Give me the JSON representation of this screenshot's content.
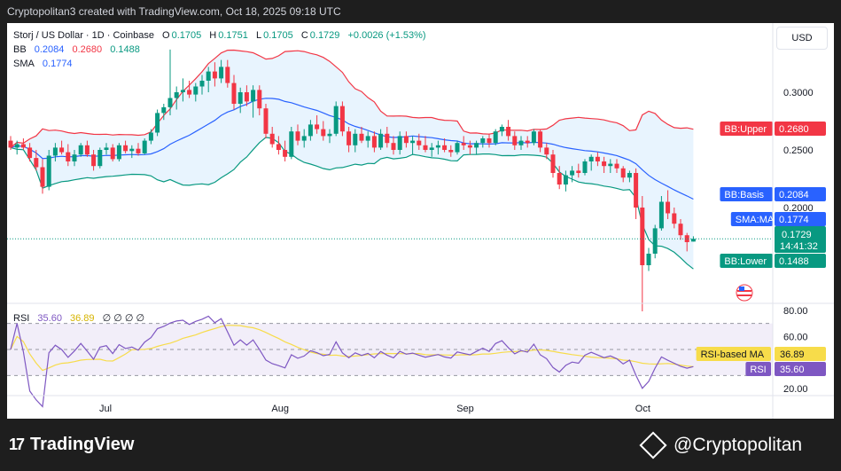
{
  "header": {
    "credit": "Cryptopolitan3 created with TradingView.com, Oct 18, 2025 09:18 UTC"
  },
  "legend": {
    "symbol": "Storj / US Dollar · 1D · Coinbase",
    "o_label": "O",
    "o_value": "0.1705",
    "h_label": "H",
    "h_value": "0.1751",
    "l_label": "L",
    "l_value": "0.1705",
    "c_label": "C",
    "c_value": "0.1729",
    "change": "+0.0026 (+1.53%)",
    "bb_label": "BB",
    "bb_basis": "0.2084",
    "bb_upper": "0.2680",
    "bb_lower": "0.1488",
    "sma_label": "SMA",
    "sma_value": "0.1774",
    "rsi_label": "RSI",
    "rsi_value": "35.60",
    "rsi_ma_value": "36.89",
    "rsi_extra": "∅ ∅ ∅ ∅"
  },
  "currency_button": "USD",
  "badges": {
    "bb_upper": {
      "label": "BB:Upper",
      "value": "0.2680"
    },
    "bb_basis": {
      "label": "BB:Basis",
      "value": "0.2084"
    },
    "sma": {
      "label": "SMA:MA",
      "value": "0.1774"
    },
    "price": {
      "value": "0.1729",
      "countdown": "14:41:32"
    },
    "bb_lower": {
      "label": "BB:Lower",
      "value": "0.1488"
    },
    "rsi_ma": {
      "label": "RSI-based MA",
      "value": "36.89"
    },
    "rsi": {
      "label": "RSI",
      "value": "35.60"
    }
  },
  "footer": {
    "brand": "TradingView",
    "watermark": "@Cryptopolitan"
  },
  "chart_data": {
    "type": "candlestick",
    "price_axis_ticks": [
      "0.3000",
      "0.2500",
      "0.2000"
    ],
    "rsi_axis_ticks": [
      "80.00",
      "60.00",
      "20.00"
    ],
    "time_ticks": [
      "Jul",
      "Aug",
      "Sep",
      "Oct"
    ],
    "ohlc": [
      [
        0.258,
        0.262,
        0.25,
        0.252
      ],
      [
        0.252,
        0.258,
        0.246,
        0.255
      ],
      [
        0.255,
        0.26,
        0.25,
        0.252
      ],
      [
        0.252,
        0.256,
        0.24,
        0.243
      ],
      [
        0.243,
        0.25,
        0.232,
        0.235
      ],
      [
        0.235,
        0.242,
        0.212,
        0.218
      ],
      [
        0.218,
        0.25,
        0.215,
        0.245
      ],
      [
        0.245,
        0.256,
        0.24,
        0.252
      ],
      [
        0.252,
        0.258,
        0.246,
        0.248
      ],
      [
        0.248,
        0.255,
        0.236,
        0.24
      ],
      [
        0.24,
        0.25,
        0.236,
        0.246
      ],
      [
        0.246,
        0.256,
        0.244,
        0.254
      ],
      [
        0.254,
        0.258,
        0.244,
        0.246
      ],
      [
        0.246,
        0.25,
        0.232,
        0.236
      ],
      [
        0.236,
        0.252,
        0.234,
        0.25
      ],
      [
        0.25,
        0.256,
        0.246,
        0.252
      ],
      [
        0.252,
        0.255,
        0.24,
        0.242
      ],
      [
        0.242,
        0.256,
        0.24,
        0.254
      ],
      [
        0.254,
        0.258,
        0.247,
        0.249
      ],
      [
        0.249,
        0.254,
        0.243,
        0.251
      ],
      [
        0.251,
        0.256,
        0.245,
        0.247
      ],
      [
        0.247,
        0.26,
        0.246,
        0.258
      ],
      [
        0.258,
        0.268,
        0.255,
        0.265
      ],
      [
        0.265,
        0.285,
        0.262,
        0.282
      ],
      [
        0.282,
        0.29,
        0.276,
        0.287
      ],
      [
        0.287,
        0.337,
        0.28,
        0.295
      ],
      [
        0.295,
        0.305,
        0.285,
        0.3
      ],
      [
        0.3,
        0.312,
        0.292,
        0.302
      ],
      [
        0.302,
        0.31,
        0.295,
        0.298
      ],
      [
        0.298,
        0.308,
        0.292,
        0.305
      ],
      [
        0.305,
        0.315,
        0.298,
        0.31
      ],
      [
        0.31,
        0.322,
        0.3,
        0.318
      ],
      [
        0.318,
        0.326,
        0.305,
        0.312
      ],
      [
        0.312,
        0.328,
        0.308,
        0.322
      ],
      [
        0.322,
        0.328,
        0.304,
        0.308
      ],
      [
        0.308,
        0.315,
        0.285,
        0.29
      ],
      [
        0.29,
        0.304,
        0.282,
        0.3
      ],
      [
        0.3,
        0.306,
        0.288,
        0.292
      ],
      [
        0.292,
        0.306,
        0.278,
        0.302
      ],
      [
        0.302,
        0.306,
        0.28,
        0.286
      ],
      [
        0.286,
        0.29,
        0.26,
        0.264
      ],
      [
        0.264,
        0.27,
        0.252,
        0.255
      ],
      [
        0.255,
        0.262,
        0.246,
        0.25
      ],
      [
        0.25,
        0.258,
        0.24,
        0.244
      ],
      [
        0.244,
        0.27,
        0.242,
        0.266
      ],
      [
        0.266,
        0.272,
        0.254,
        0.258
      ],
      [
        0.258,
        0.268,
        0.252,
        0.262
      ],
      [
        0.262,
        0.276,
        0.258,
        0.272
      ],
      [
        0.272,
        0.28,
        0.264,
        0.268
      ],
      [
        0.268,
        0.275,
        0.258,
        0.262
      ],
      [
        0.262,
        0.268,
        0.256,
        0.264
      ],
      [
        0.264,
        0.292,
        0.262,
        0.288
      ],
      [
        0.288,
        0.292,
        0.262,
        0.266
      ],
      [
        0.266,
        0.27,
        0.248,
        0.254
      ],
      [
        0.254,
        0.268,
        0.248,
        0.264
      ],
      [
        0.264,
        0.27,
        0.256,
        0.258
      ],
      [
        0.258,
        0.266,
        0.252,
        0.262
      ],
      [
        0.262,
        0.266,
        0.248,
        0.252
      ],
      [
        0.252,
        0.268,
        0.25,
        0.264
      ],
      [
        0.264,
        0.27,
        0.252,
        0.256
      ],
      [
        0.256,
        0.262,
        0.246,
        0.25
      ],
      [
        0.25,
        0.266,
        0.246,
        0.262
      ],
      [
        0.262,
        0.266,
        0.252,
        0.256
      ],
      [
        0.256,
        0.262,
        0.246,
        0.258
      ],
      [
        0.258,
        0.264,
        0.25,
        0.254
      ],
      [
        0.254,
        0.262,
        0.248,
        0.25
      ],
      [
        0.25,
        0.256,
        0.244,
        0.252
      ],
      [
        0.252,
        0.258,
        0.246,
        0.254
      ],
      [
        0.254,
        0.26,
        0.248,
        0.25
      ],
      [
        0.25,
        0.254,
        0.244,
        0.248
      ],
      [
        0.248,
        0.258,
        0.246,
        0.256
      ],
      [
        0.256,
        0.262,
        0.25,
        0.254
      ],
      [
        0.254,
        0.258,
        0.246,
        0.252
      ],
      [
        0.252,
        0.258,
        0.246,
        0.256
      ],
      [
        0.256,
        0.262,
        0.252,
        0.26
      ],
      [
        0.26,
        0.264,
        0.252,
        0.256
      ],
      [
        0.256,
        0.268,
        0.254,
        0.266
      ],
      [
        0.266,
        0.272,
        0.262,
        0.27
      ],
      [
        0.27,
        0.276,
        0.258,
        0.262
      ],
      [
        0.262,
        0.266,
        0.25,
        0.254
      ],
      [
        0.254,
        0.262,
        0.25,
        0.258
      ],
      [
        0.258,
        0.262,
        0.252,
        0.256
      ],
      [
        0.256,
        0.268,
        0.254,
        0.266
      ],
      [
        0.266,
        0.268,
        0.248,
        0.252
      ],
      [
        0.252,
        0.256,
        0.242,
        0.246
      ],
      [
        0.246,
        0.25,
        0.226,
        0.23
      ],
      [
        0.23,
        0.236,
        0.216,
        0.22
      ],
      [
        0.22,
        0.232,
        0.214,
        0.228
      ],
      [
        0.228,
        0.236,
        0.222,
        0.232
      ],
      [
        0.232,
        0.238,
        0.226,
        0.23
      ],
      [
        0.23,
        0.242,
        0.228,
        0.24
      ],
      [
        0.24,
        0.246,
        0.232,
        0.244
      ],
      [
        0.244,
        0.248,
        0.236,
        0.24
      ],
      [
        0.24,
        0.244,
        0.23,
        0.236
      ],
      [
        0.236,
        0.242,
        0.23,
        0.238
      ],
      [
        0.238,
        0.242,
        0.23,
        0.234
      ],
      [
        0.234,
        0.236,
        0.222,
        0.226
      ],
      [
        0.226,
        0.232,
        0.222,
        0.23
      ],
      [
        0.23,
        0.234,
        0.19,
        0.2
      ],
      [
        0.2,
        0.21,
        0.11,
        0.15
      ],
      [
        0.15,
        0.165,
        0.145,
        0.16
      ],
      [
        0.16,
        0.185,
        0.156,
        0.182
      ],
      [
        0.182,
        0.21,
        0.18,
        0.205
      ],
      [
        0.205,
        0.215,
        0.19,
        0.195
      ],
      [
        0.195,
        0.2,
        0.182,
        0.186
      ],
      [
        0.186,
        0.19,
        0.172,
        0.176
      ],
      [
        0.176,
        0.178,
        0.162,
        0.17
      ],
      [
        0.1705,
        0.1751,
        0.1705,
        0.1729
      ]
    ]
  }
}
